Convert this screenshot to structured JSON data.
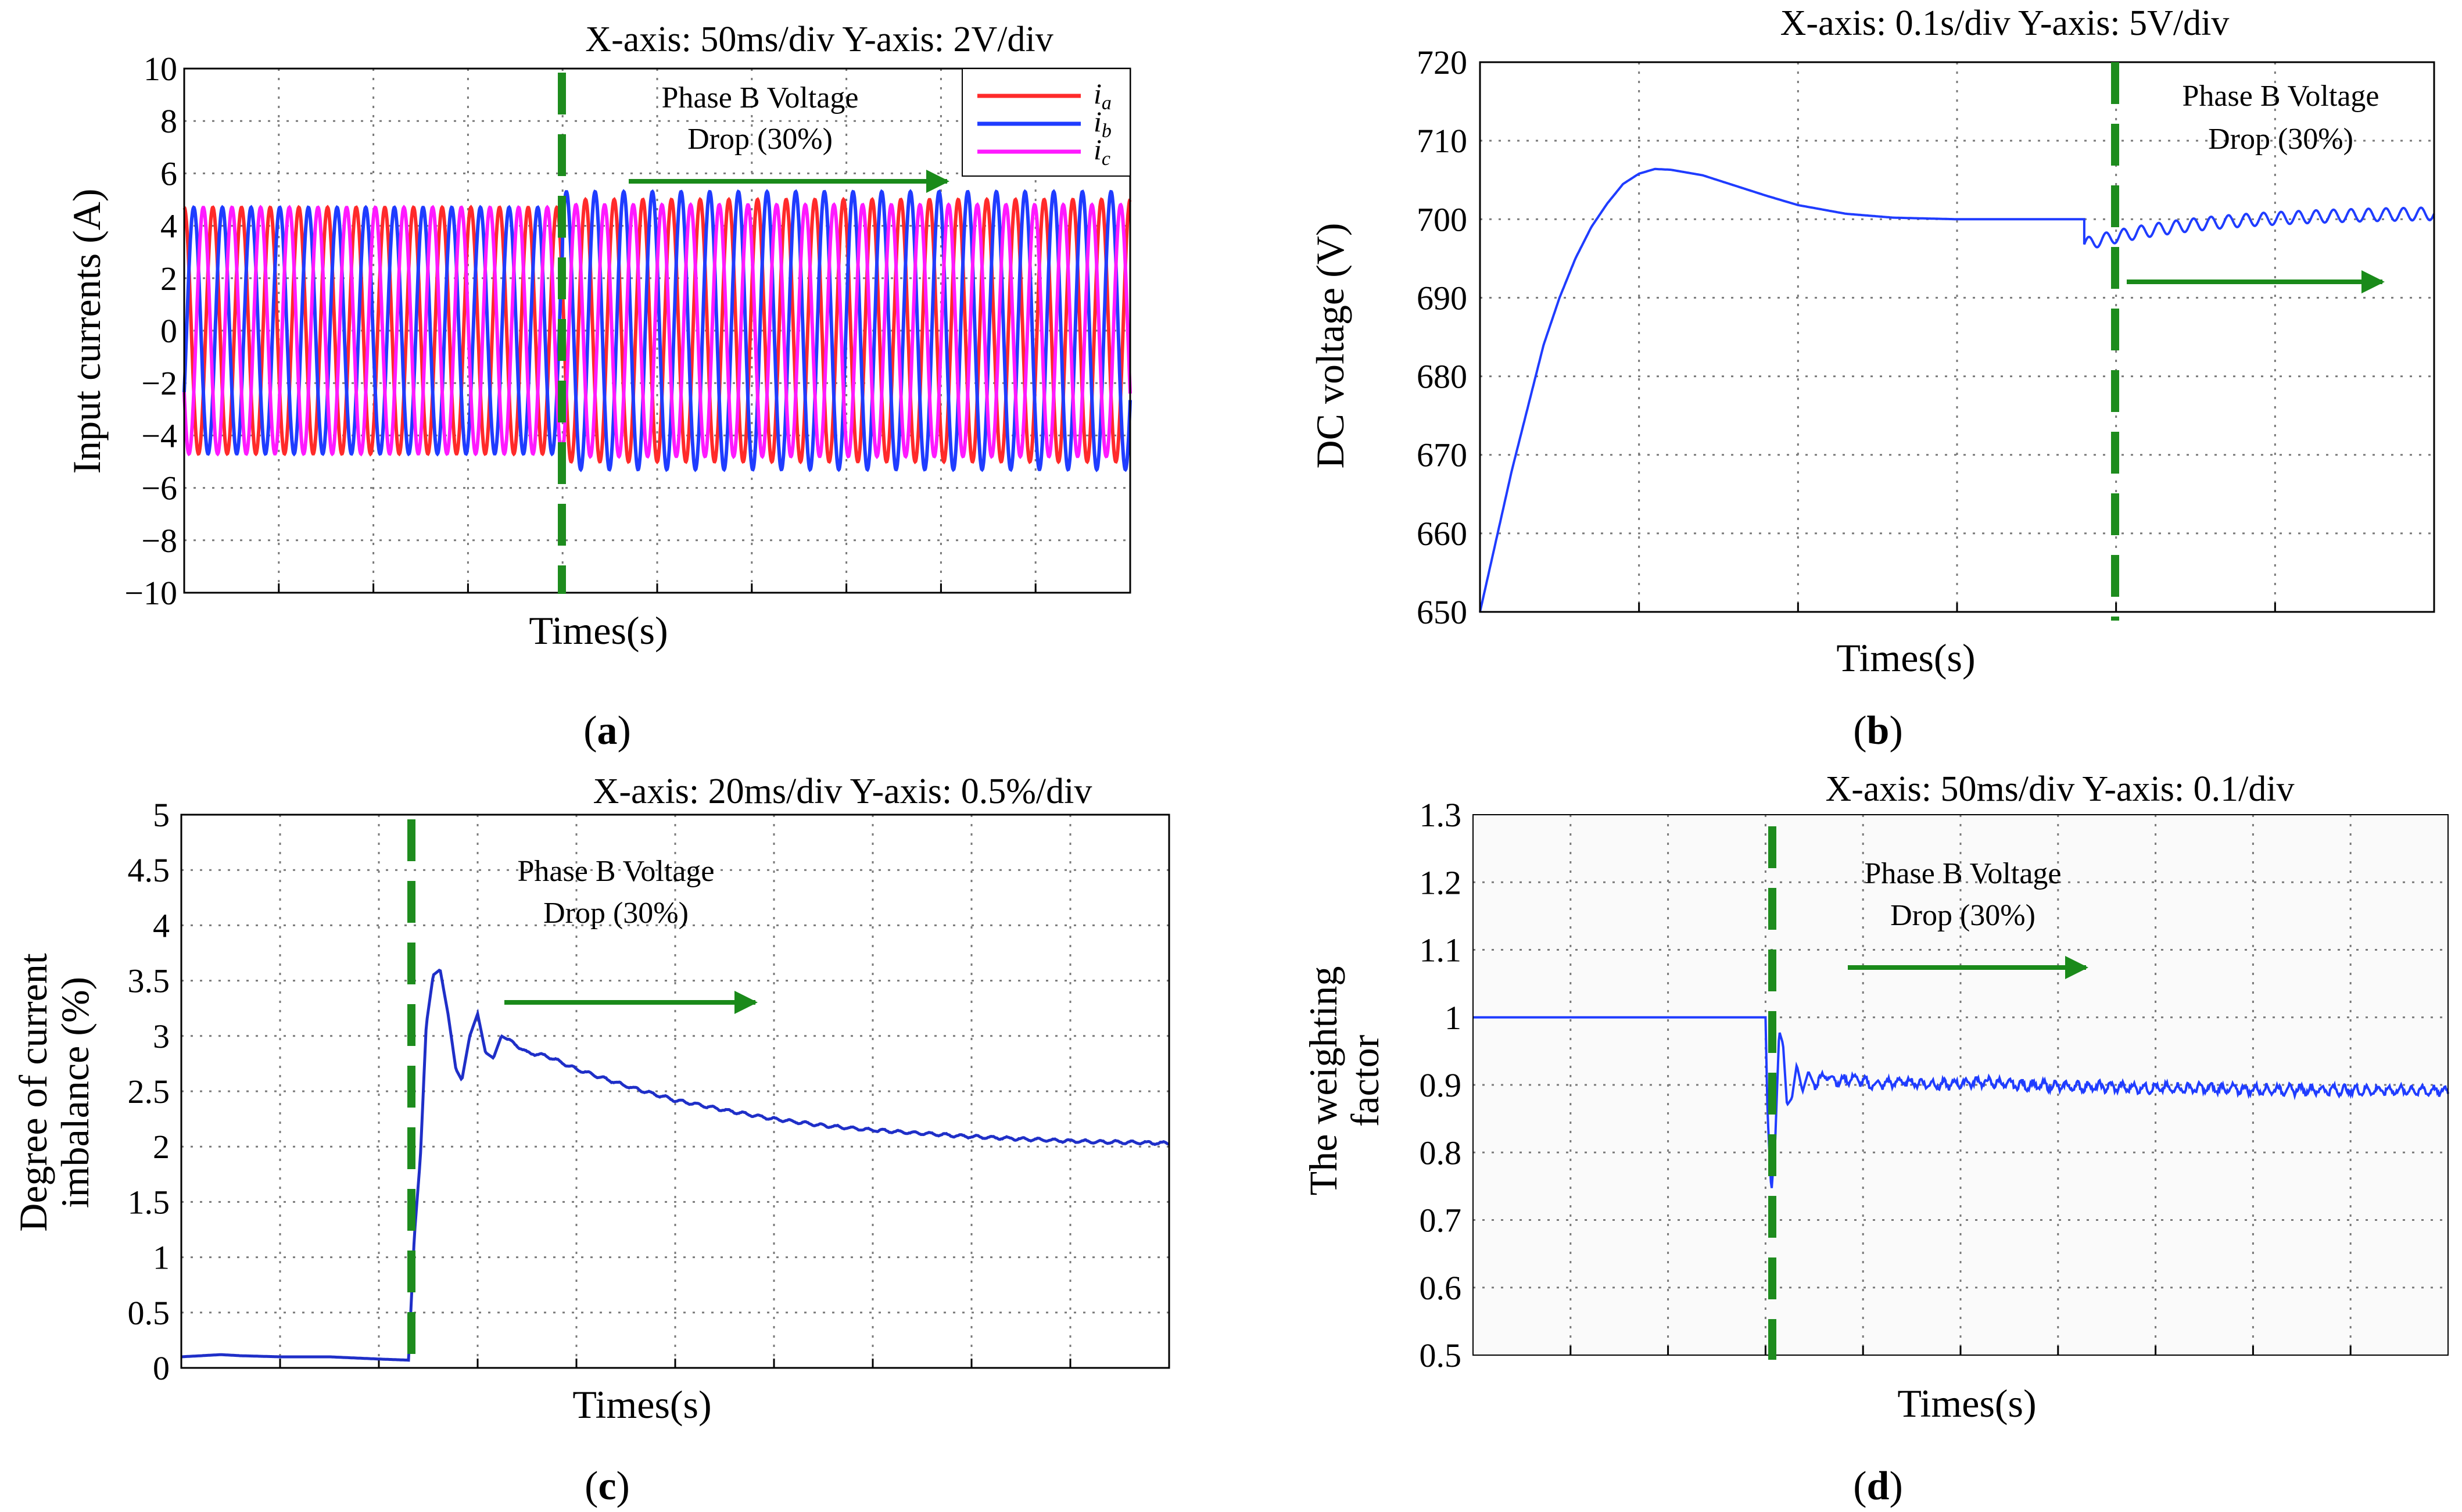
{
  "figure": {
    "panels": [
      {
        "caption_letter": "a",
        "scale": "X-axis: 50ms/div  Y-axis: 2V/div",
        "annotation_line1": "Phase B Voltage",
        "annotation_line2": "Drop (30%)",
        "xlabel": "Times(s)",
        "ylabel": "Input currents  (A)"
      },
      {
        "caption_letter": "b",
        "scale": "X-axis: 0.1s/div  Y-axis: 5V/div",
        "annotation_line1": "Phase B Voltage",
        "annotation_line2": "Drop (30%)",
        "xlabel": "Times(s)",
        "ylabel": "DC voltage  (V)"
      },
      {
        "caption_letter": "c",
        "scale": "X-axis: 20ms/div  Y-axis: 0.5%/div",
        "annotation_line1": "Phase B Voltage",
        "annotation_line2": "Drop (30%)",
        "xlabel": "Times(s)",
        "ylabel_line1": "Degree of current",
        "ylabel_line2": "imbalance (%)"
      },
      {
        "caption_letter": "d",
        "scale": "X-axis: 50ms/div  Y-axis: 0.1/div",
        "annotation_line1": "Phase B Voltage",
        "annotation_line2": "Drop (30%)",
        "xlabel": "Times(s)",
        "ylabel_line1": "The weighting",
        "ylabel_line2": "factor"
      }
    ]
  },
  "chart_data": [
    {
      "type": "line",
      "title": "X-axis: 50ms/div  Y-axis: 2V/div",
      "xlabel": "Times(s)",
      "ylabel": "Input currents  (A)",
      "xlim": [
        0,
        10
      ],
      "ylim": [
        -10,
        10
      ],
      "yticks": [
        10,
        8,
        6,
        4,
        2,
        0,
        -2,
        -4,
        -6,
        -8,
        -10
      ],
      "ytick_labels": [
        "10",
        "8",
        "6",
        "4",
        "2",
        "0",
        "−2",
        "−4",
        "−6",
        "−8",
        "−10"
      ],
      "x_divisions": 10,
      "y_divisions": 10,
      "event_x": 4.0,
      "cycles": 33,
      "series": [
        {
          "name": "ia",
          "color": "#ff2a2a",
          "phase_deg": 90,
          "amp_before": 4.7,
          "amp_after": 5.0
        },
        {
          "name": "ib",
          "color": "#1f3cff",
          "phase_deg": -30,
          "amp_before": 4.7,
          "amp_after": 5.3
        },
        {
          "name": "ic",
          "color": "#ff19ff",
          "phase_deg": 210,
          "amp_before": 4.7,
          "amp_after": 4.8
        }
      ],
      "legend": {
        "position": "top-right",
        "entries": [
          {
            "main": "i",
            "sub": "a"
          },
          {
            "main": "i",
            "sub": "b"
          },
          {
            "main": "i",
            "sub": "c"
          }
        ]
      },
      "annotation": "Phase B Voltage Drop (30%)"
    },
    {
      "type": "line",
      "title": "X-axis: 0.1s/div  Y-axis: 5V/div",
      "xlabel": "Times(s)",
      "ylabel": "DC voltage  (V)",
      "xlim": [
        0,
        6
      ],
      "ylim": [
        650,
        720
      ],
      "yticks": [
        720,
        710,
        700,
        690,
        680,
        670,
        660,
        650
      ],
      "ytick_labels": [
        "720",
        "710",
        "700",
        "690",
        "680",
        "670",
        "660",
        "650"
      ],
      "x_divisions": 6,
      "y_divisions": 7,
      "event_x": 3.8,
      "points": [
        [
          0.0,
          650
        ],
        [
          0.1,
          659
        ],
        [
          0.2,
          668
        ],
        [
          0.3,
          676
        ],
        [
          0.4,
          684
        ],
        [
          0.5,
          690
        ],
        [
          0.6,
          695
        ],
        [
          0.7,
          699
        ],
        [
          0.8,
          702
        ],
        [
          0.9,
          704.5
        ],
        [
          1.0,
          705.8
        ],
        [
          1.1,
          706.4
        ],
        [
          1.2,
          706.3
        ],
        [
          1.4,
          705.6
        ],
        [
          1.6,
          704.3
        ],
        [
          1.8,
          703.0
        ],
        [
          2.0,
          701.8
        ],
        [
          2.3,
          700.7
        ],
        [
          2.6,
          700.2
        ],
        [
          3.0,
          700.0
        ],
        [
          3.5,
          700.0
        ],
        [
          3.8,
          700.0
        ]
      ],
      "post_event": {
        "start": 696.8,
        "end": 700.9,
        "ripple": 0.8,
        "cycles": 20
      },
      "series": [
        {
          "name": "Vdc",
          "color": "#1f3cff"
        }
      ],
      "annotation": "Phase B Voltage Drop (30%)"
    },
    {
      "type": "line",
      "title": "X-axis: 20ms/div  Y-axis: 0.5%/div",
      "xlabel": "Times(s)",
      "ylabel": "Degree of current imbalance (%)",
      "xlim": [
        0,
        10
      ],
      "ylim": [
        0,
        5
      ],
      "yticks": [
        5,
        4.5,
        4,
        3.5,
        3,
        2.5,
        2,
        1.5,
        1,
        0.5,
        0
      ],
      "ytick_labels": [
        "5",
        "4.5",
        "4",
        "3.5",
        "3",
        "2.5",
        "2",
        "1.5",
        "1",
        "0.5",
        "0"
      ],
      "x_divisions": 10,
      "y_divisions": 10,
      "event_x": 2.3,
      "points": [
        [
          0,
          0.1
        ],
        [
          0.2,
          0.11
        ],
        [
          0.4,
          0.12
        ],
        [
          0.6,
          0.11
        ],
        [
          1.0,
          0.1
        ],
        [
          1.5,
          0.1
        ],
        [
          2.0,
          0.08
        ],
        [
          2.3,
          0.07
        ],
        [
          2.36,
          1.2
        ],
        [
          2.42,
          1.9
        ],
        [
          2.48,
          3.1
        ],
        [
          2.55,
          3.55
        ],
        [
          2.62,
          3.6
        ],
        [
          2.7,
          3.2
        ],
        [
          2.78,
          2.7
        ],
        [
          2.84,
          2.6
        ],
        [
          2.92,
          3.0
        ],
        [
          3.0,
          3.2
        ],
        [
          3.08,
          2.85
        ],
        [
          3.16,
          2.8
        ],
        [
          3.24,
          3.0
        ],
        [
          3.34,
          2.95
        ],
        [
          3.5,
          2.85
        ],
        [
          3.7,
          2.82
        ],
        [
          4.0,
          2.7
        ],
        [
          4.5,
          2.55
        ],
        [
          5.0,
          2.42
        ],
        [
          5.5,
          2.33
        ],
        [
          6.0,
          2.25
        ],
        [
          6.5,
          2.19
        ],
        [
          7.0,
          2.15
        ],
        [
          7.5,
          2.12
        ],
        [
          8.0,
          2.09
        ],
        [
          8.5,
          2.07
        ],
        [
          9.0,
          2.05
        ],
        [
          9.5,
          2.04
        ],
        [
          10,
          2.03
        ]
      ],
      "series": [
        {
          "name": "imbalance",
          "color": "#1f2fc8"
        }
      ],
      "annotation": "Phase B Voltage Drop (30%)"
    },
    {
      "type": "line",
      "title": "X-axis: 50ms/div  Y-axis: 0.1/div",
      "xlabel": "Times(s)",
      "ylabel": "The weighting factor",
      "xlim": [
        0,
        10
      ],
      "ylim": [
        0.5,
        1.3
      ],
      "yticks": [
        1.3,
        1.2,
        1.1,
        1,
        0.9,
        0.8,
        0.7,
        0.6,
        0.5
      ],
      "ytick_labels": [
        "1.3",
        "1.2",
        "1.1",
        "1",
        "0.9",
        "0.8",
        "0.7",
        "0.6",
        "0.5"
      ],
      "x_divisions": 10,
      "y_divisions": 8,
      "event_x": 3.0,
      "points": [
        [
          0,
          1.0
        ],
        [
          3.0,
          1.0
        ],
        [
          3.02,
          0.86
        ],
        [
          3.06,
          0.74
        ],
        [
          3.1,
          0.82
        ],
        [
          3.14,
          0.98
        ],
        [
          3.18,
          0.96
        ],
        [
          3.22,
          0.87
        ],
        [
          3.27,
          0.88
        ],
        [
          3.32,
          0.93
        ],
        [
          3.38,
          0.89
        ],
        [
          3.44,
          0.92
        ],
        [
          3.5,
          0.9
        ],
        [
          3.6,
          0.915
        ],
        [
          3.75,
          0.905
        ],
        [
          3.9,
          0.91
        ],
        [
          4.1,
          0.9
        ],
        [
          4.4,
          0.905
        ],
        [
          4.8,
          0.9
        ],
        [
          5.2,
          0.905
        ],
        [
          5.6,
          0.9
        ],
        [
          6.0,
          0.898
        ],
        [
          6.5,
          0.897
        ],
        [
          7.0,
          0.895
        ],
        [
          7.5,
          0.895
        ],
        [
          8.0,
          0.893
        ],
        [
          8.5,
          0.893
        ],
        [
          9.0,
          0.892
        ],
        [
          9.5,
          0.892
        ],
        [
          10,
          0.891
        ]
      ],
      "noise": 0.006,
      "series": [
        {
          "name": "weighting",
          "color": "#1f3cff"
        }
      ],
      "annotation": "Phase B Voltage Drop (30%)"
    }
  ]
}
